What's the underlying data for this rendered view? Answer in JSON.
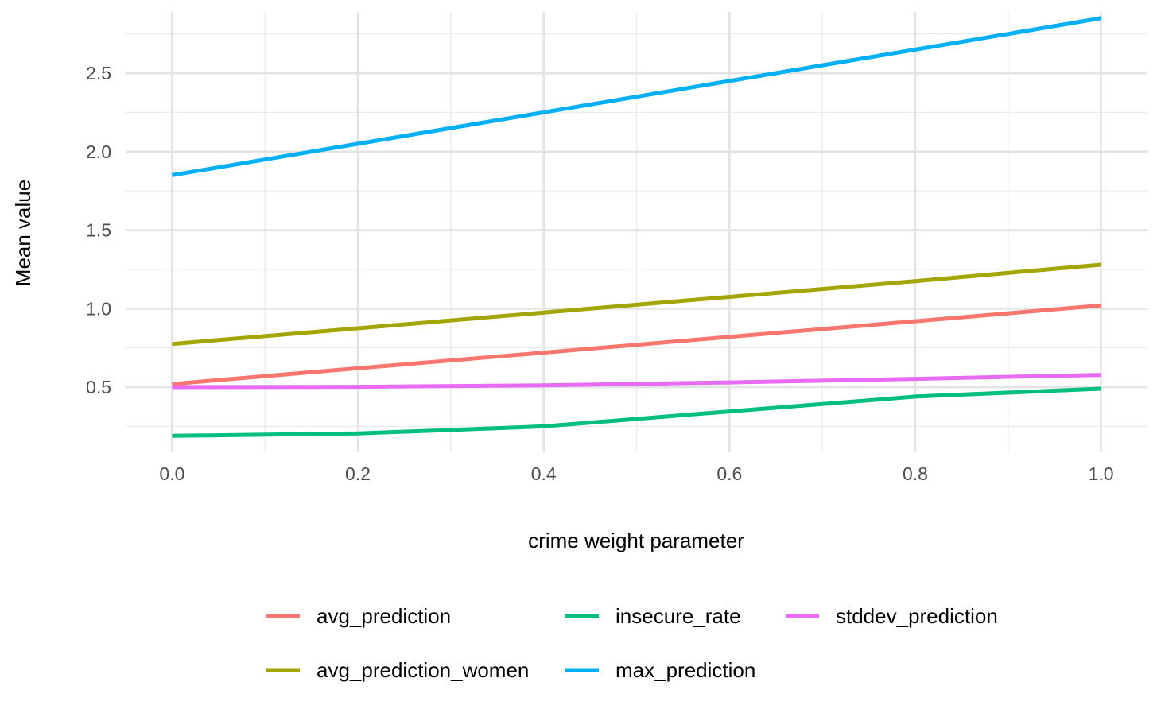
{
  "chart_data": {
    "type": "line",
    "title": "",
    "xlabel": "crime weight parameter",
    "ylabel": "Mean value",
    "xlim": [
      -0.05,
      1.05
    ],
    "ylim": [
      0.09,
      2.89
    ],
    "x_ticks": [
      "0.0",
      "0.2",
      "0.4",
      "0.6",
      "0.8",
      "1.0"
    ],
    "y_ticks": [
      "0.5",
      "1.0",
      "1.5",
      "2.0",
      "2.5"
    ],
    "grid": true,
    "legend_position": "bottom",
    "x": [
      0.0,
      0.2,
      0.4,
      0.6,
      0.8,
      1.0
    ],
    "series": [
      {
        "name": "avg_prediction",
        "color": "#F8766D",
        "values": [
          0.52,
          0.62,
          0.72,
          0.82,
          0.92,
          1.02
        ]
      },
      {
        "name": "avg_prediction_women",
        "color": "#A3A500",
        "values": [
          0.775,
          0.875,
          0.975,
          1.075,
          1.175,
          1.28
        ]
      },
      {
        "name": "insecure_rate",
        "color": "#00BF7D",
        "values": [
          0.19,
          0.205,
          0.25,
          0.345,
          0.44,
          0.49
        ]
      },
      {
        "name": "max_prediction",
        "color": "#00B0F6",
        "values": [
          1.85,
          2.05,
          2.25,
          2.45,
          2.65,
          2.85
        ]
      },
      {
        "name": "stddev_prediction",
        "color": "#E76BF3",
        "values": [
          0.5,
          0.502,
          0.512,
          0.53,
          0.553,
          0.578
        ]
      }
    ],
    "legend_order": [
      "avg_prediction",
      "insecure_rate",
      "stddev_prediction",
      "avg_prediction_women",
      "max_prediction"
    ]
  }
}
